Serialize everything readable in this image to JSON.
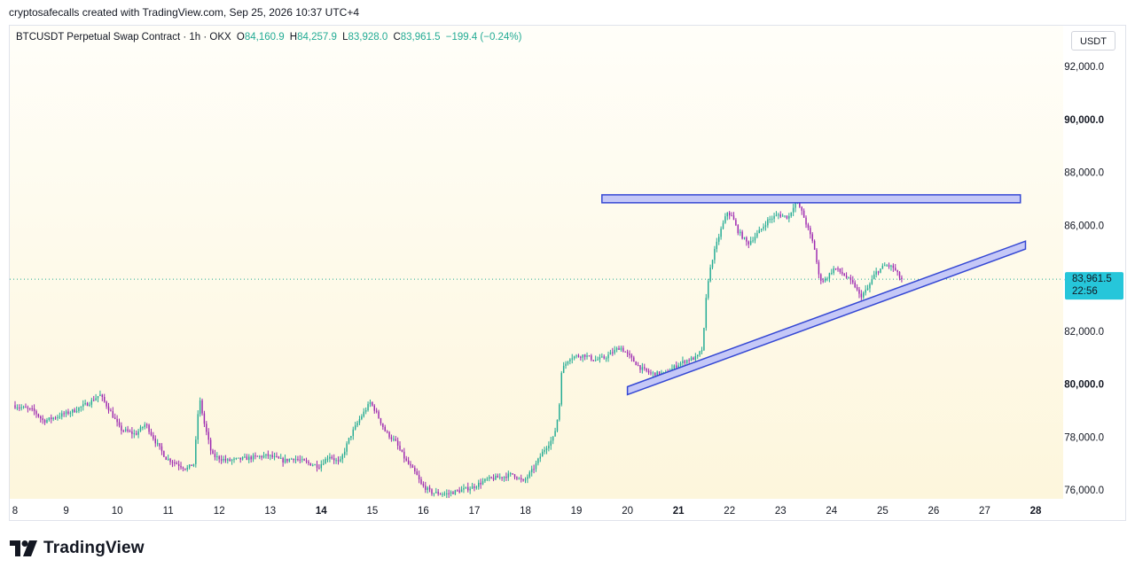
{
  "caption": "cryptosafecalls created with TradingView.com, Sep 25, 2026 10:37 UTC+4",
  "legend": {
    "symbol": "BTCUSDT Perpetual Swap Contract · 1h · OKX",
    "open_label": "O",
    "open": "84,160.9",
    "high_label": "H",
    "high": "84,257.9",
    "low_label": "L",
    "low": "83,928.0",
    "close_label": "C",
    "close": "83,961.5",
    "change": "−199.4 (−0.24%)"
  },
  "unit": "USDT",
  "price_tag": {
    "price": "83,961.5",
    "countdown": "22:56"
  },
  "branding": "TradingView",
  "colors": {
    "up": "#22ab94",
    "down": "#9c27b0",
    "accent": "#26c6da",
    "drawing_fill": "#c5c8f7",
    "drawing_stroke": "#3548d4",
    "bg_top": "#fffef9",
    "bg_bottom": "#fdf6dc"
  },
  "chart_data": {
    "type": "candlestick",
    "interval": "1h",
    "y_ticks": [
      "76,000.0",
      "78,000.0",
      "80,000.0",
      "82,000.0",
      "84,000.0",
      "86,000.0",
      "88,000.0",
      "90,000.0",
      "92,000.0"
    ],
    "y_tick_values": [
      76000,
      78000,
      80000,
      82000,
      84000,
      86000,
      88000,
      90000,
      92000
    ],
    "bold_y_ticks": [
      "80,000.0",
      "90,000.0"
    ],
    "ylim": [
      75700,
      93000
    ],
    "x_ticks": [
      "8",
      "9",
      "10",
      "11",
      "12",
      "13",
      "14",
      "15",
      "16",
      "17",
      "18",
      "19",
      "20",
      "21",
      "22",
      "23",
      "24",
      "25",
      "26",
      "27",
      "28"
    ],
    "bold_x_ticks": [
      "14",
      "21",
      "28"
    ],
    "xlim": [
      7.9,
      28.1
    ],
    "price_path": [
      [
        8.0,
        79200
      ],
      [
        8.4,
        79000
      ],
      [
        8.6,
        78600
      ],
      [
        8.9,
        78800
      ],
      [
        9.2,
        79000
      ],
      [
        9.5,
        79300
      ],
      [
        9.7,
        79600
      ],
      [
        9.9,
        79000
      ],
      [
        10.1,
        78300
      ],
      [
        10.4,
        78100
      ],
      [
        10.6,
        78500
      ],
      [
        10.8,
        77800
      ],
      [
        11.0,
        77200
      ],
      [
        11.2,
        77000
      ],
      [
        11.4,
        76800
      ],
      [
        11.55,
        77000
      ],
      [
        11.65,
        79500
      ],
      [
        11.75,
        78500
      ],
      [
        11.9,
        77300
      ],
      [
        12.2,
        77100
      ],
      [
        12.6,
        77200
      ],
      [
        13.0,
        77300
      ],
      [
        13.3,
        77100
      ],
      [
        13.5,
        77200
      ],
      [
        13.8,
        77000
      ],
      [
        14.0,
        76900
      ],
      [
        14.2,
        77300
      ],
      [
        14.4,
        77000
      ],
      [
        14.6,
        78000
      ],
      [
        14.8,
        78700
      ],
      [
        15.0,
        79300
      ],
      [
        15.1,
        79000
      ],
      [
        15.3,
        78200
      ],
      [
        15.5,
        77800
      ],
      [
        15.7,
        77100
      ],
      [
        15.9,
        76600
      ],
      [
        16.0,
        76200
      ],
      [
        16.2,
        75900
      ],
      [
        16.5,
        75850
      ],
      [
        16.8,
        76000
      ],
      [
        17.0,
        76100
      ],
      [
        17.3,
        76400
      ],
      [
        17.6,
        76500
      ],
      [
        17.8,
        76600
      ],
      [
        18.0,
        76300
      ],
      [
        18.2,
        76800
      ],
      [
        18.4,
        77500
      ],
      [
        18.6,
        78000
      ],
      [
        18.7,
        79000
      ],
      [
        18.75,
        80500
      ],
      [
        18.9,
        81000
      ],
      [
        19.2,
        81100
      ],
      [
        19.4,
        80900
      ],
      [
        19.6,
        81000
      ],
      [
        19.9,
        81400
      ],
      [
        20.1,
        81000
      ],
      [
        20.3,
        80600
      ],
      [
        20.5,
        80400
      ],
      [
        20.8,
        80400
      ],
      [
        21.0,
        80700
      ],
      [
        21.2,
        80900
      ],
      [
        21.4,
        81000
      ],
      [
        21.5,
        81300
      ],
      [
        21.55,
        82200
      ],
      [
        21.6,
        83700
      ],
      [
        21.7,
        84700
      ],
      [
        21.85,
        85700
      ],
      [
        22.0,
        86500
      ],
      [
        22.1,
        86300
      ],
      [
        22.2,
        85800
      ],
      [
        22.4,
        85300
      ],
      [
        22.6,
        85700
      ],
      [
        22.8,
        86200
      ],
      [
        23.0,
        86400
      ],
      [
        23.2,
        86300
      ],
      [
        23.35,
        87000
      ],
      [
        23.5,
        86300
      ],
      [
        23.7,
        85200
      ],
      [
        23.8,
        84000
      ],
      [
        23.9,
        83900
      ],
      [
        24.1,
        84400
      ],
      [
        24.3,
        84100
      ],
      [
        24.5,
        83700
      ],
      [
        24.6,
        83300
      ],
      [
        24.75,
        83600
      ],
      [
        24.9,
        84200
      ],
      [
        25.1,
        84500
      ],
      [
        25.25,
        84400
      ],
      [
        25.4,
        83962
      ]
    ],
    "last_price": 83961.5,
    "drawings": {
      "resistance_zone": {
        "x_start": 19.5,
        "x_end": 27.7,
        "y_low": 86850,
        "y_high": 87150
      },
      "rising_support_channel": {
        "x_start": 20.0,
        "y_start_low": 79600,
        "y_start_high": 79900,
        "x_end": 27.8,
        "y_end_low": 85100,
        "y_end_high": 85400
      }
    }
  }
}
